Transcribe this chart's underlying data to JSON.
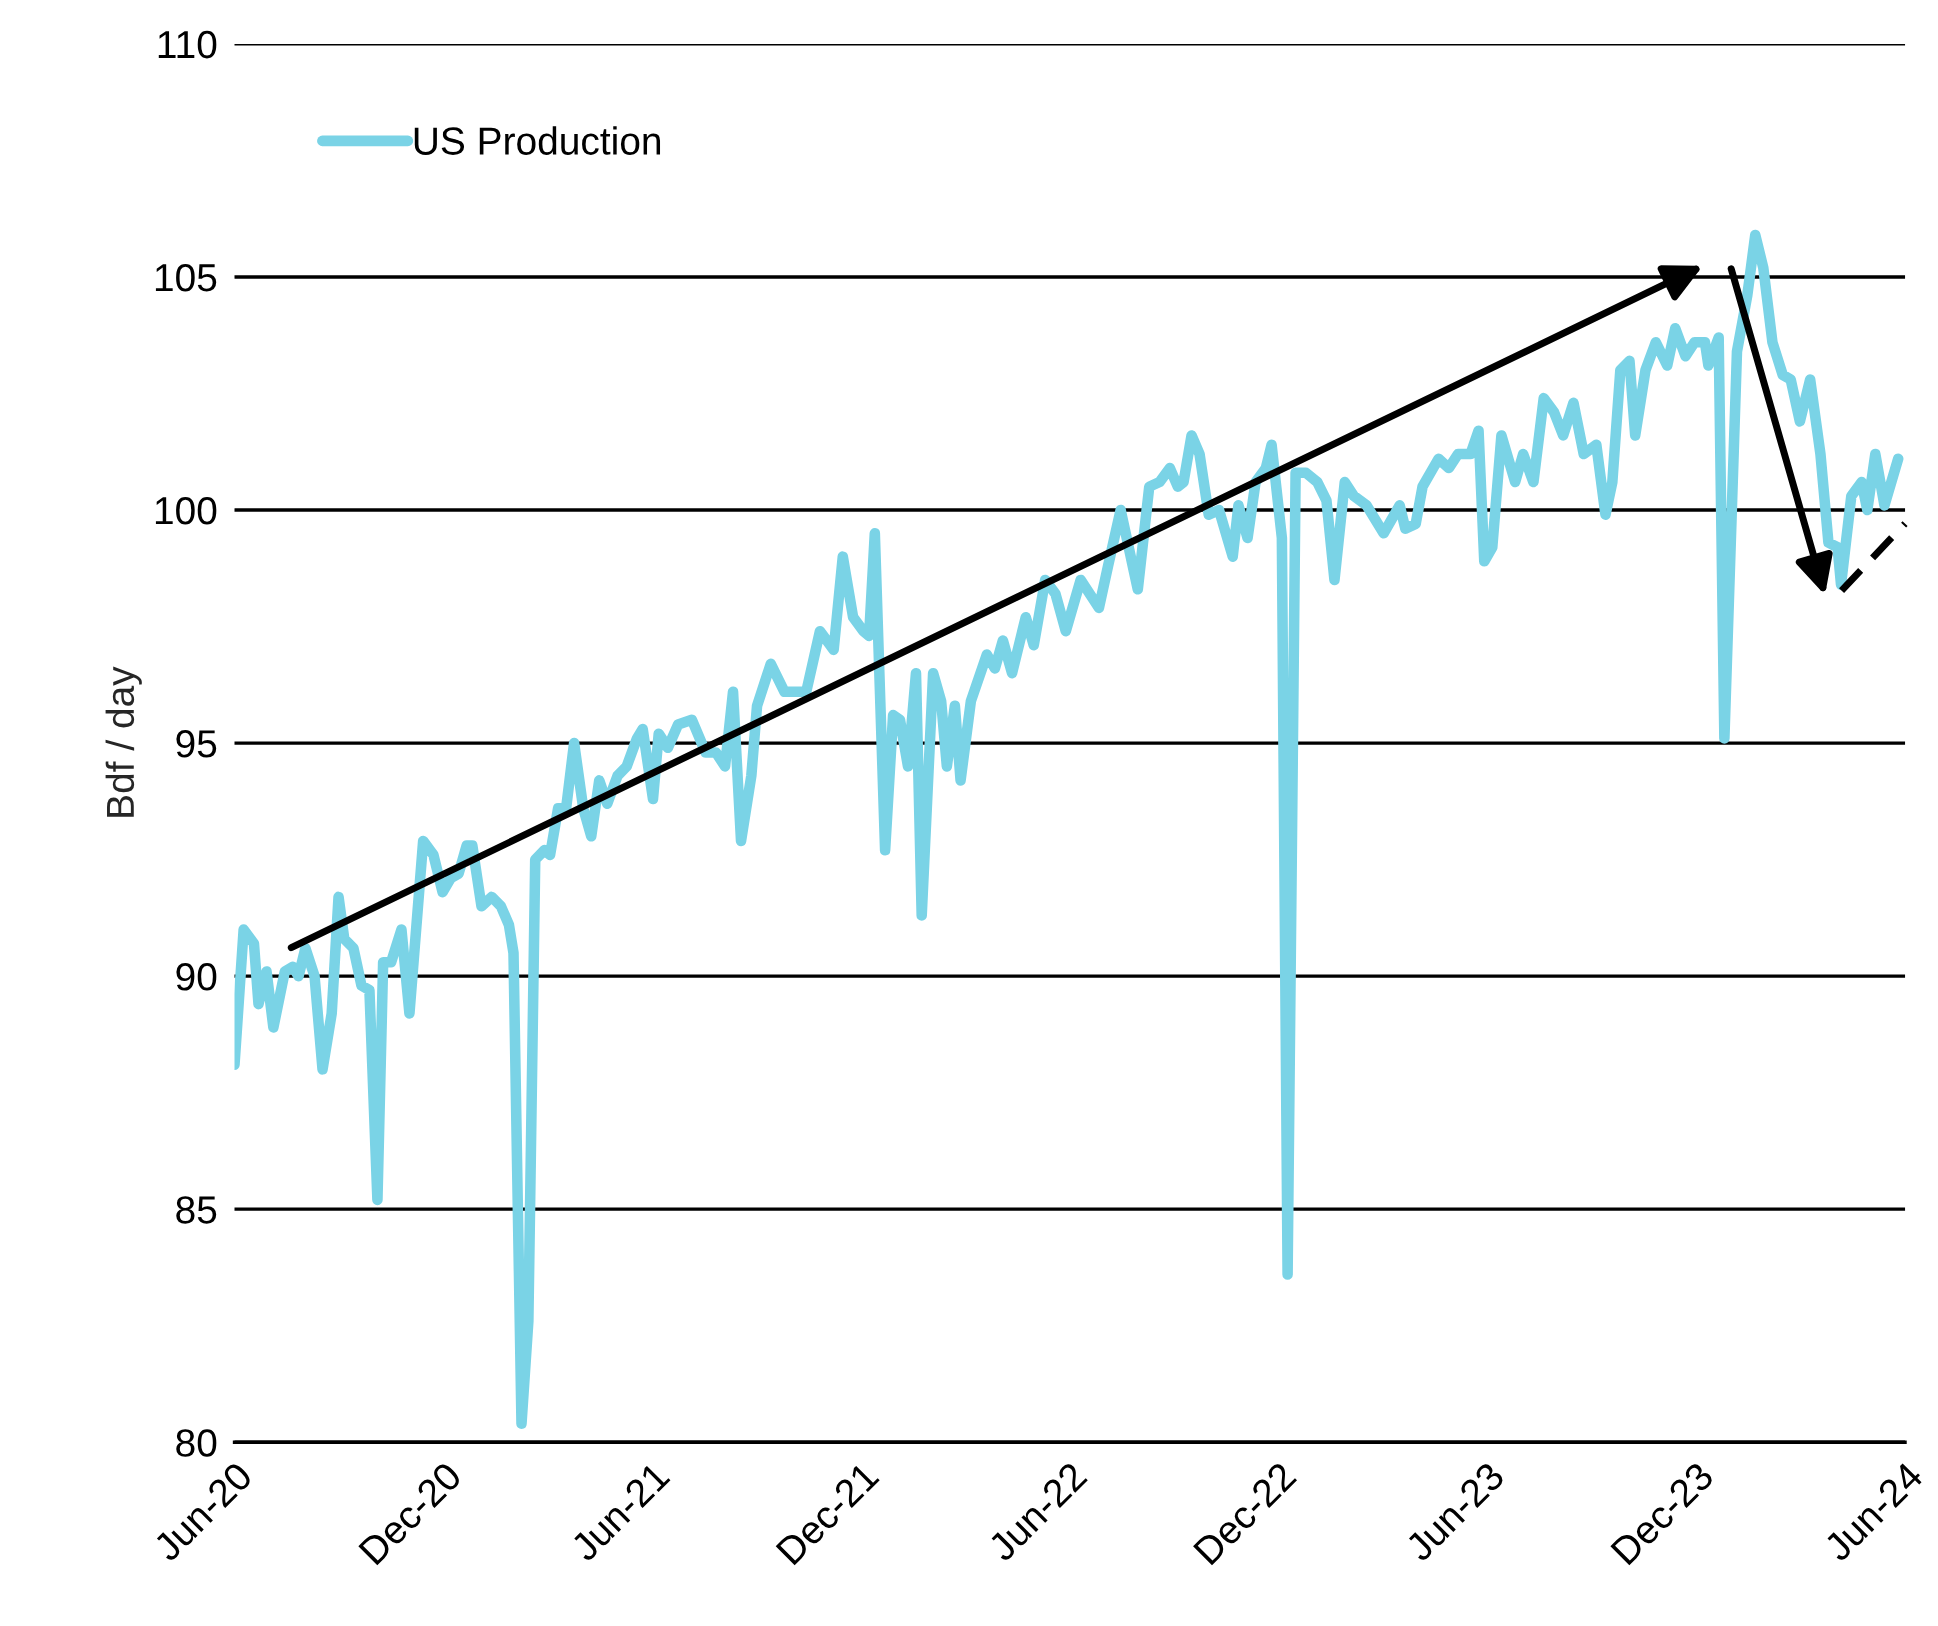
{
  "chart_data": {
    "type": "line",
    "ylabel": "Bdf / day",
    "x": [
      "2020-06-01",
      "2020-06-09",
      "2020-06-18",
      "2020-06-22",
      "2020-06-29",
      "2020-07-05",
      "2020-07-15",
      "2020-07-22",
      "2020-07-27",
      "2020-08-02",
      "2020-08-10",
      "2020-08-17",
      "2020-08-25",
      "2020-08-31",
      "2020-09-05",
      "2020-09-13",
      "2020-09-20",
      "2020-09-27",
      "2020-10-04",
      "2020-10-09",
      "2020-10-16",
      "2020-10-25",
      "2020-11-01",
      "2020-11-13",
      "2020-11-22",
      "2020-11-30",
      "2020-12-07",
      "2020-12-14",
      "2020-12-21",
      "2020-12-26",
      "2021-01-03",
      "2021-01-12",
      "2021-01-20",
      "2021-01-27",
      "2021-01-31",
      "2021-02-07",
      "2021-02-13",
      "2021-02-19",
      "2021-02-27",
      "2021-03-04",
      "2021-03-11",
      "2021-03-18",
      "2021-03-25",
      "2021-04-02",
      "2021-04-09",
      "2021-04-16",
      "2021-04-23",
      "2021-05-02",
      "2021-05-10",
      "2021-05-19",
      "2021-05-24",
      "2021-06-02",
      "2021-06-07",
      "2021-06-15",
      "2021-06-24",
      "2021-07-06",
      "2021-07-18",
      "2021-07-27",
      "2021-08-04",
      "2021-08-11",
      "2021-08-18",
      "2021-08-27",
      "2021-09-01",
      "2021-09-13",
      "2021-09-25",
      "2021-10-05",
      "2021-10-14",
      "2021-10-26",
      "2021-11-07",
      "2021-11-15",
      "2021-11-24",
      "2021-12-03",
      "2021-12-08",
      "2021-12-13",
      "2021-12-22",
      "2021-12-29",
      "2022-01-04",
      "2022-01-11",
      "2022-01-18",
      "2022-01-23",
      "2022-02-02",
      "2022-02-09",
      "2022-02-14",
      "2022-02-21",
      "2022-02-26",
      "2022-03-07",
      "2022-03-21",
      "2022-03-28",
      "2022-04-04",
      "2022-04-12",
      "2022-04-24",
      "2022-05-01",
      "2022-05-11",
      "2022-05-20",
      "2022-05-29",
      "2022-06-11",
      "2022-06-27",
      "2022-07-05",
      "2022-07-16",
      "2022-07-31",
      "2022-08-10",
      "2022-08-19",
      "2022-08-28",
      "2022-09-04",
      "2022-09-09",
      "2022-09-16",
      "2022-09-23",
      "2022-10-01",
      "2022-10-10",
      "2022-10-22",
      "2022-10-27",
      "2022-11-04",
      "2022-11-11",
      "2022-11-20",
      "2022-11-25",
      "2022-12-04",
      "2022-12-09",
      "2022-12-16",
      "2022-12-25",
      "2023-01-04",
      "2023-01-12",
      "2023-01-19",
      "2023-01-28",
      "2023-02-05",
      "2023-02-16",
      "2023-03-03",
      "2023-03-17",
      "2023-03-22",
      "2023-03-31",
      "2023-04-06",
      "2023-04-20",
      "2023-04-29",
      "2023-05-07",
      "2023-05-18",
      "2023-05-25",
      "2023-05-30",
      "2023-06-06",
      "2023-06-14",
      "2023-06-26",
      "2023-07-03",
      "2023-07-12",
      "2023-07-21",
      "2023-07-30",
      "2023-08-07",
      "2023-08-16",
      "2023-08-25",
      "2023-09-05",
      "2023-09-13",
      "2023-09-19",
      "2023-09-26",
      "2023-10-04",
      "2023-10-09",
      "2023-10-18",
      "2023-10-27",
      "2023-11-06",
      "2023-11-13",
      "2023-11-22",
      "2023-11-30",
      "2023-12-09",
      "2023-12-12",
      "2023-12-21",
      "2023-12-26",
      "2024-01-06",
      "2024-01-15",
      "2024-01-22",
      "2024-01-29",
      "2024-02-06",
      "2024-02-15",
      "2024-02-22",
      "2024-03-01",
      "2024-03-10",
      "2024-03-19",
      "2024-03-26",
      "2024-04-03",
      "2024-04-06",
      "2024-04-15",
      "2024-04-24",
      "2024-04-29",
      "2024-05-06",
      "2024-05-14",
      "2024-05-26"
    ],
    "series": [
      {
        "name": "US Production",
        "color": "#7ad3e6",
        "values": [
          88.1,
          91.0,
          90.7,
          89.4,
          90.1,
          88.9,
          90.1,
          90.2,
          90.0,
          90.6,
          90.0,
          88.0,
          89.2,
          91.7,
          90.8,
          90.6,
          89.8,
          89.7,
          85.2,
          90.3,
          90.3,
          91.0,
          89.2,
          92.9,
          92.6,
          91.8,
          92.1,
          92.2,
          92.8,
          92.8,
          91.5,
          91.7,
          91.5,
          91.1,
          90.5,
          80.4,
          82.6,
          92.5,
          92.7,
          92.6,
          93.6,
          93.6,
          95.0,
          93.6,
          93.0,
          94.2,
          93.7,
          94.3,
          94.5,
          95.1,
          95.3,
          93.8,
          95.2,
          94.9,
          95.4,
          95.5,
          94.8,
          94.8,
          94.5,
          96.1,
          92.9,
          94.3,
          95.8,
          96.7,
          96.1,
          96.1,
          96.1,
          97.4,
          97.0,
          99.0,
          97.7,
          97.4,
          97.3,
          99.5,
          92.7,
          95.6,
          95.5,
          94.5,
          96.5,
          91.3,
          96.5,
          95.9,
          94.5,
          95.8,
          94.2,
          95.9,
          96.9,
          96.6,
          97.2,
          96.5,
          97.7,
          97.1,
          98.5,
          98.2,
          97.4,
          98.5,
          97.9,
          98.8,
          100.0,
          98.3,
          100.5,
          100.6,
          100.9,
          100.5,
          100.6,
          101.6,
          101.2,
          99.9,
          100.0,
          99.0,
          100.1,
          99.4,
          100.6,
          100.9,
          101.4,
          99.4,
          83.6,
          100.8,
          100.8,
          100.6,
          100.2,
          98.5,
          100.6,
          100.3,
          100.1,
          99.5,
          100.1,
          99.6,
          99.7,
          100.5,
          101.1,
          100.9,
          101.2,
          101.2,
          101.7,
          98.9,
          99.2,
          101.6,
          100.6,
          101.2,
          100.6,
          102.4,
          102.1,
          101.6,
          102.3,
          101.2,
          101.4,
          99.9,
          100.6,
          103.0,
          103.2,
          101.6,
          103.0,
          103.6,
          103.1,
          103.9,
          103.3,
          103.6,
          103.6,
          103.1,
          103.7,
          95.1,
          103.4,
          104.6,
          105.9,
          105.2,
          103.6,
          102.9,
          102.8,
          101.9,
          102.8,
          101.2,
          99.3,
          99.2,
          98.4,
          100.3,
          100.6,
          100.0,
          101.2,
          100.1,
          101.1
        ]
      }
    ],
    "xlim": [
      "2020-06-01",
      "2024-06-01"
    ],
    "xticks": [
      {
        "value": "2020-06-01",
        "label": "Jun-20"
      },
      {
        "value": "2020-12-01",
        "label": "Dec-20"
      },
      {
        "value": "2021-06-01",
        "label": "Jun-21"
      },
      {
        "value": "2021-12-01",
        "label": "Dec-21"
      },
      {
        "value": "2022-06-01",
        "label": "Jun-22"
      },
      {
        "value": "2022-12-01",
        "label": "Dec-22"
      },
      {
        "value": "2023-06-01",
        "label": "Jun-23"
      },
      {
        "value": "2023-12-01",
        "label": "Dec-23"
      },
      {
        "value": "2024-06-01",
        "label": "Jun-24"
      }
    ],
    "ylim": [
      80,
      110
    ],
    "yticks": [
      80,
      85,
      90,
      95,
      100,
      105,
      110
    ],
    "grid": "y",
    "legend": "top left",
    "marker": "none",
    "line_style": "solid"
  }
}
